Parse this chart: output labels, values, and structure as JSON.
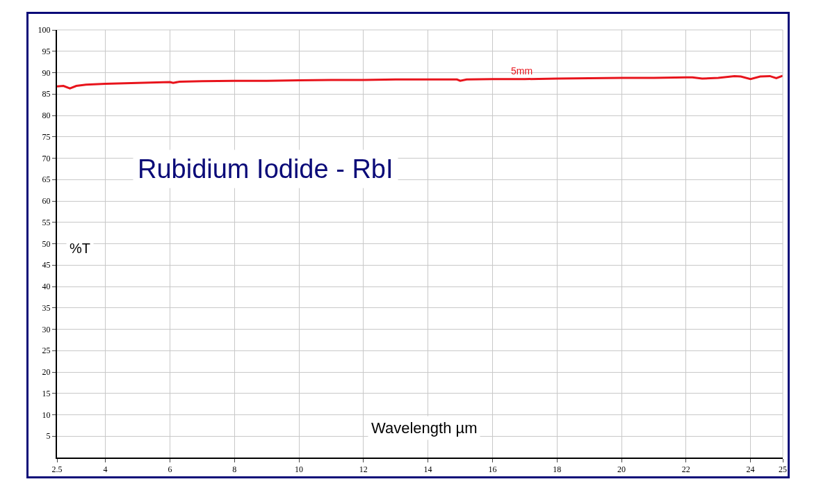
{
  "chart_data": {
    "type": "line",
    "title": "Rubidium Iodide - RbI",
    "xlabel": "Wavelength µm",
    "ylabel": "%T",
    "x": [
      2.5,
      2.7,
      2.9,
      3.1,
      3.4,
      4,
      5,
      6,
      6.1,
      6.3,
      7,
      8,
      9,
      10,
      11,
      12,
      13,
      14,
      14.9,
      15,
      15.2,
      16,
      17,
      18,
      19,
      20,
      21,
      22,
      22.2,
      22.5,
      23,
      23.5,
      23.7,
      24,
      24.3,
      24.6,
      24.8,
      25
    ],
    "series": [
      {
        "name": "5mm",
        "color": "#e8141c",
        "values": [
          86.8,
          86.9,
          86.3,
          86.9,
          87.2,
          87.4,
          87.6,
          87.8,
          87.6,
          87.9,
          88,
          88.1,
          88.1,
          88.2,
          88.3,
          88.3,
          88.4,
          88.4,
          88.4,
          88.1,
          88.4,
          88.5,
          88.5,
          88.6,
          88.7,
          88.8,
          88.8,
          88.9,
          88.9,
          88.6,
          88.8,
          89.2,
          89.1,
          88.5,
          89.1,
          89.2,
          88.7,
          89.3
        ]
      }
    ],
    "xlim": [
      2.5,
      25
    ],
    "ylim": [
      0,
      100
    ],
    "xticks": [
      2.5,
      4,
      6,
      8,
      10,
      12,
      14,
      16,
      18,
      20,
      22,
      24,
      25
    ],
    "yticks": [
      5,
      10,
      15,
      20,
      25,
      30,
      35,
      40,
      45,
      50,
      55,
      60,
      65,
      70,
      75,
      80,
      85,
      90,
      95,
      100
    ],
    "grid": true,
    "legend": false,
    "marker": "none",
    "line_style": "solid"
  }
}
